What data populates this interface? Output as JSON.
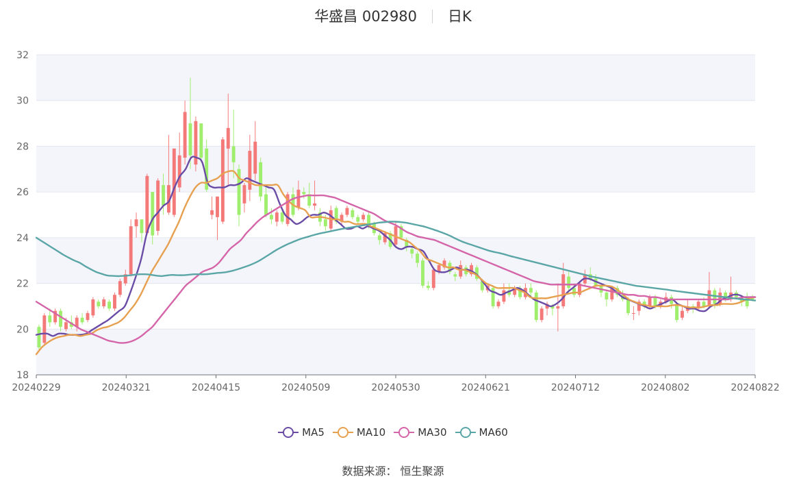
{
  "header": {
    "stock": "华盛昌 002980",
    "period": "日K"
  },
  "source_label": "数据来源：  恒生聚源",
  "colors": {
    "up": "#f47a7a",
    "down": "#a0ee6e",
    "MA5": "#6a4ca6",
    "MA10": "#e7a04f",
    "MA30": "#d565a9",
    "MA60": "#5aa6a6"
  },
  "chart_data": {
    "type": "candlestick",
    "ylim": [
      18,
      32
    ],
    "yticks": [
      18,
      20,
      22,
      24,
      26,
      28,
      30,
      32
    ],
    "xtick_labels": [
      "20240229",
      "20240321",
      "20240415",
      "20240509",
      "20240530",
      "20240621",
      "20240712",
      "20240802",
      "20240822"
    ],
    "grid": true,
    "legend_position": "bottom",
    "candles": [
      [
        20.1,
        19.2,
        20.2,
        19.1
      ],
      [
        19.4,
        20.6,
        20.7,
        19.3
      ],
      [
        20.6,
        20.3,
        20.9,
        20.1
      ],
      [
        20.3,
        20.8,
        20.9,
        20.2
      ],
      [
        20.8,
        20.1,
        20.9,
        19.9
      ],
      [
        20.0,
        20.3,
        20.5,
        19.9
      ],
      [
        20.3,
        20.1,
        20.6,
        20.0
      ],
      [
        20.1,
        20.5,
        20.6,
        19.9
      ],
      [
        20.5,
        20.3,
        20.7,
        20.2
      ],
      [
        20.4,
        20.7,
        20.8,
        20.3
      ],
      [
        20.6,
        21.3,
        21.4,
        20.5
      ],
      [
        21.2,
        21.0,
        21.3,
        20.9
      ],
      [
        21.0,
        21.3,
        21.4,
        20.9
      ],
      [
        21.2,
        20.9,
        21.3,
        20.8
      ],
      [
        20.9,
        21.5,
        21.6,
        20.8
      ],
      [
        21.5,
        22.1,
        22.2,
        21.4
      ],
      [
        22.0,
        22.4,
        22.6,
        21.9
      ],
      [
        22.4,
        24.5,
        24.8,
        22.3
      ],
      [
        24.5,
        24.8,
        25.1,
        24.0
      ],
      [
        24.8,
        24.2,
        24.8,
        23.8
      ],
      [
        24.2,
        26.7,
        26.8,
        24.1
      ],
      [
        26.0,
        24.1,
        26.0,
        23.7
      ],
      [
        24.3,
        26.5,
        26.6,
        24.1
      ],
      [
        26.3,
        25.4,
        26.8,
        25.0
      ],
      [
        25.1,
        26.3,
        28.5,
        25.0
      ],
      [
        25.0,
        27.9,
        27.9,
        24.9
      ],
      [
        26.2,
        27.6,
        28.6,
        26.0
      ],
      [
        27.5,
        29.5,
        30.0,
        27.2
      ],
      [
        29.0,
        27.6,
        31.0,
        27.0
      ],
      [
        27.2,
        29.1,
        29.3,
        26.9
      ],
      [
        29.0,
        27.5,
        29.0,
        27.3
      ],
      [
        27.9,
        26.1,
        28.3,
        26.0
      ],
      [
        25.0,
        25.2,
        25.8,
        24.8
      ],
      [
        24.9,
        25.8,
        25.8,
        23.9
      ],
      [
        24.7,
        28.3,
        28.4,
        24.6
      ],
      [
        27.9,
        28.8,
        30.3,
        26.3
      ],
      [
        28.0,
        27.3,
        29.6,
        26.6
      ],
      [
        27.0,
        25.0,
        27.2,
        24.5
      ],
      [
        25.5,
        26.3,
        26.4,
        25.1
      ],
      [
        26.1,
        27.8,
        28.5,
        25.6
      ],
      [
        26.8,
        28.2,
        29.1,
        26.5
      ],
      [
        27.3,
        25.8,
        27.5,
        25.6
      ],
      [
        25.9,
        25.0,
        26.2,
        24.9
      ],
      [
        25.0,
        24.8,
        25.3,
        24.6
      ],
      [
        24.7,
        25.1,
        25.2,
        24.5
      ],
      [
        25.1,
        24.7,
        25.3,
        24.6
      ],
      [
        24.6,
        25.9,
        26.0,
        24.5
      ],
      [
        25.9,
        25.0,
        26.2,
        24.9
      ],
      [
        25.3,
        26.1,
        26.5,
        25.2
      ],
      [
        26.0,
        25.9,
        26.2,
        25.7
      ],
      [
        25.9,
        25.4,
        26.4,
        25.3
      ],
      [
        25.4,
        25.5,
        26.5,
        25.2
      ],
      [
        25.1,
        24.7,
        25.3,
        24.5
      ],
      [
        24.8,
        24.5,
        25.0,
        24.3
      ],
      [
        24.4,
        25.2,
        25.4,
        24.3
      ],
      [
        25.3,
        24.7,
        25.4,
        24.6
      ],
      [
        24.7,
        25.0,
        25.1,
        24.6
      ],
      [
        25.0,
        25.3,
        25.4,
        24.9
      ],
      [
        25.2,
        24.9,
        25.3,
        24.8
      ],
      [
        24.9,
        24.7,
        25.0,
        24.6
      ],
      [
        24.8,
        25.0,
        25.1,
        24.7
      ],
      [
        25.0,
        24.6,
        25.1,
        24.4
      ],
      [
        24.6,
        24.2,
        24.7,
        24.1
      ],
      [
        24.1,
        23.9,
        24.2,
        23.7
      ],
      [
        23.8,
        24.2,
        24.3,
        23.7
      ],
      [
        24.2,
        23.6,
        24.3,
        23.5
      ],
      [
        23.7,
        24.5,
        24.7,
        23.6
      ],
      [
        24.5,
        24.0,
        24.6,
        23.9
      ],
      [
        23.9,
        23.6,
        24.0,
        23.4
      ],
      [
        23.5,
        23.3,
        23.6,
        23.1
      ],
      [
        23.3,
        22.9,
        23.4,
        22.7
      ],
      [
        23.0,
        21.9,
        23.1,
        21.8
      ],
      [
        21.9,
        21.8,
        22.1,
        21.7
      ],
      [
        21.8,
        22.6,
        22.7,
        21.7
      ],
      [
        22.5,
        22.8,
        22.9,
        22.4
      ],
      [
        22.7,
        23.0,
        23.1,
        22.6
      ],
      [
        22.9,
        22.5,
        23.0,
        22.4
      ],
      [
        22.4,
        22.3,
        22.5,
        22.1
      ],
      [
        22.3,
        22.8,
        23.0,
        22.2
      ],
      [
        22.7,
        22.4,
        22.8,
        22.3
      ],
      [
        22.4,
        22.8,
        22.9,
        22.3
      ],
      [
        22.7,
        22.2,
        22.8,
        22.1
      ],
      [
        22.1,
        21.7,
        22.2,
        21.6
      ],
      [
        21.7,
        21.9,
        22.0,
        21.6
      ],
      [
        21.8,
        21.0,
        21.9,
        20.9
      ],
      [
        21.0,
        21.2,
        21.3,
        20.9
      ],
      [
        21.2,
        21.7,
        22.0,
        21.1
      ],
      [
        21.7,
        21.5,
        22.0,
        21.4
      ],
      [
        21.5,
        21.8,
        21.9,
        21.4
      ],
      [
        21.8,
        21.4,
        21.9,
        21.3
      ],
      [
        21.4,
        21.8,
        22.0,
        21.3
      ],
      [
        21.8,
        21.6,
        22.0,
        21.4
      ],
      [
        21.6,
        20.4,
        21.7,
        20.3
      ],
      [
        20.4,
        20.9,
        21.0,
        20.3
      ],
      [
        20.9,
        21.1,
        21.2,
        20.6
      ],
      [
        21.0,
        20.9,
        21.1,
        20.6
      ],
      [
        20.9,
        21.0,
        22.0,
        19.9
      ],
      [
        21.0,
        22.4,
        22.9,
        20.9
      ],
      [
        22.3,
        21.8,
        22.5,
        21.6
      ],
      [
        21.8,
        21.5,
        22.0,
        21.4
      ],
      [
        21.5,
        22.0,
        22.1,
        21.4
      ],
      [
        22.0,
        22.4,
        22.6,
        21.9
      ],
      [
        22.4,
        22.2,
        22.7,
        22.1
      ],
      [
        22.2,
        21.9,
        22.4,
        21.8
      ],
      [
        21.9,
        21.6,
        22.0,
        21.4
      ],
      [
        21.6,
        21.3,
        21.7,
        21.0
      ],
      [
        21.3,
        21.8,
        21.9,
        21.2
      ],
      [
        21.8,
        21.5,
        21.9,
        21.4
      ],
      [
        21.5,
        21.3,
        21.7,
        21.2
      ],
      [
        21.3,
        20.7,
        21.4,
        20.6
      ],
      [
        20.7,
        20.7,
        21.0,
        20.4
      ],
      [
        20.8,
        21.2,
        21.3,
        20.6
      ],
      [
        21.2,
        21.0,
        21.3,
        20.9
      ],
      [
        21.0,
        21.4,
        21.5,
        20.9
      ],
      [
        21.4,
        21.0,
        21.5,
        20.9
      ],
      [
        21.0,
        21.2,
        21.3,
        20.9
      ],
      [
        21.2,
        21.4,
        21.6,
        21.1
      ],
      [
        21.4,
        21.1,
        21.5,
        20.9
      ],
      [
        21.1,
        20.4,
        21.2,
        20.3
      ],
      [
        20.5,
        20.8,
        21.0,
        20.4
      ],
      [
        20.8,
        21.0,
        21.3,
        20.7
      ],
      [
        21.0,
        20.9,
        21.1,
        20.7
      ],
      [
        20.9,
        21.2,
        21.3,
        20.8
      ],
      [
        21.2,
        21.0,
        21.4,
        20.9
      ],
      [
        21.0,
        21.7,
        22.5,
        20.9
      ],
      [
        21.7,
        21.1,
        21.8,
        20.9
      ],
      [
        21.1,
        21.6,
        21.8,
        21.0
      ],
      [
        21.6,
        21.3,
        21.7,
        21.2
      ],
      [
        21.3,
        21.6,
        22.3,
        21.2
      ],
      [
        21.6,
        21.4,
        21.7,
        21.3
      ],
      [
        21.4,
        21.2,
        21.5,
        21.0
      ],
      [
        21.4,
        21.0,
        21.6,
        20.9
      ],
      [
        21.4,
        21.3,
        21.5,
        21.2
      ]
    ],
    "series": [
      {
        "name": "MA5",
        "values": [
          19.75,
          19.8,
          19.8,
          19.7,
          19.8,
          19.8,
          19.75,
          19.75,
          19.75,
          19.8,
          19.95,
          20.1,
          20.25,
          20.4,
          20.6,
          20.8,
          21.0,
          21.6,
          22.3,
          23.1,
          24.2,
          24.8,
          25.1,
          25.4,
          25.6,
          26.2,
          26.7,
          27.0,
          27.5,
          27.5,
          27.3,
          26.4,
          26.2,
          26.2,
          26.2,
          26.3,
          26.3,
          26.4,
          26.6,
          26.5,
          26.4,
          26.3,
          26.2,
          26.1,
          25.5,
          25.0,
          24.8,
          24.6,
          24.7,
          24.9,
          25.0,
          25.0,
          25.1,
          25.0,
          24.8,
          24.6,
          24.4,
          24.4,
          24.5,
          24.4,
          24.5,
          24.4,
          24.3,
          24.1,
          23.9,
          23.6,
          23.5,
          23.6,
          23.6,
          23.5,
          23.4,
          23.0,
          22.6,
          22.5,
          22.5,
          22.6,
          22.7,
          22.6,
          22.6,
          22.5,
          22.3,
          22.0,
          21.7,
          21.6,
          21.5,
          21.6,
          21.7,
          21.8,
          21.7,
          21.5,
          21.3,
          21.2,
          21.1,
          21.0,
          21.1,
          21.3,
          21.6,
          21.8,
          22.0,
          22.2,
          22.2,
          22.1,
          22.0,
          21.9,
          21.8,
          21.6,
          21.4,
          21.3,
          21.2,
          21.1,
          21.0,
          20.9,
          21.0,
          21.1,
          21.2,
          21.3,
          21.1,
          21.0,
          20.9,
          20.9,
          20.8,
          20.8,
          21.0,
          21.1,
          21.3,
          21.4,
          21.5,
          21.5,
          21.4,
          21.4,
          21.4
        ]
      },
      {
        "name": "MA10",
        "values": [
          18.9,
          19.2,
          19.4,
          19.55,
          19.65,
          19.7,
          19.75,
          19.75,
          19.7,
          19.75,
          19.8,
          19.95,
          20.05,
          20.1,
          20.2,
          20.3,
          20.5,
          20.8,
          21.1,
          21.5,
          22.0,
          22.5,
          22.9,
          23.3,
          23.7,
          24.2,
          24.7,
          25.3,
          25.8,
          26.2,
          26.4,
          26.4,
          26.5,
          26.6,
          26.8,
          26.9,
          26.9,
          26.6,
          26.5,
          26.4,
          26.3,
          26.3,
          26.3,
          26.3,
          26.3,
          25.9,
          25.6,
          25.4,
          25.3,
          25.2,
          24.9,
          24.9,
          24.9,
          24.85,
          24.8,
          24.8,
          24.7,
          24.7,
          24.6,
          24.6,
          24.6,
          24.5,
          24.4,
          24.3,
          24.2,
          24.1,
          24.0,
          23.9,
          23.8,
          23.6,
          23.4,
          23.1,
          23.0,
          22.9,
          22.8,
          22.7,
          22.7,
          22.6,
          22.6,
          22.5,
          22.4,
          22.2,
          22.0,
          21.9,
          21.8,
          21.8,
          21.8,
          21.8,
          21.7,
          21.6,
          21.4,
          21.35,
          21.35,
          21.35,
          21.4,
          21.45,
          21.5,
          21.55,
          21.6,
          21.6,
          21.7,
          21.8,
          21.9,
          21.9,
          21.9,
          21.85,
          21.7,
          21.5,
          21.3,
          21.2,
          21.1,
          21.05,
          21.0,
          21.0,
          21.0,
          21.0,
          21.05,
          21.05,
          21.0,
          20.95,
          20.95,
          20.95,
          21.0,
          21.05,
          21.05,
          21.1,
          21.1,
          21.1,
          21.15,
          21.25,
          21.35,
          21.4
        ]
      },
      {
        "name": "MA30",
        "values": [
          21.2,
          21.05,
          20.9,
          20.75,
          20.6,
          20.45,
          20.3,
          20.15,
          20.0,
          19.9,
          19.8,
          19.7,
          19.6,
          19.5,
          19.45,
          19.4,
          19.4,
          19.45,
          19.55,
          19.7,
          19.9,
          20.1,
          20.4,
          20.7,
          21.0,
          21.3,
          21.6,
          21.9,
          22.1,
          22.3,
          22.5,
          22.6,
          22.7,
          22.9,
          23.2,
          23.5,
          23.7,
          23.9,
          24.2,
          24.45,
          24.7,
          24.9,
          25.05,
          25.2,
          25.35,
          25.5,
          25.65,
          25.75,
          25.8,
          25.85,
          25.85,
          25.85,
          25.85,
          25.8,
          25.75,
          25.65,
          25.55,
          25.45,
          25.35,
          25.25,
          25.15,
          25.05,
          24.9,
          24.75,
          24.65,
          24.55,
          24.4,
          24.25,
          24.15,
          24.05,
          24.0,
          23.95,
          23.9,
          23.8,
          23.7,
          23.6,
          23.5,
          23.4,
          23.3,
          23.2,
          23.1,
          23.0,
          22.9,
          22.8,
          22.7,
          22.6,
          22.5,
          22.4,
          22.3,
          22.2,
          22.1,
          22.05,
          22.0,
          21.95,
          21.95,
          21.95,
          21.95,
          21.95,
          21.95,
          21.9,
          21.85,
          21.8,
          21.75,
          21.7,
          21.65,
          21.6,
          21.55,
          21.5,
          21.5,
          21.45,
          21.45,
          21.4,
          21.4,
          21.35,
          21.3,
          21.3,
          21.3,
          21.3,
          21.3,
          21.3,
          21.3,
          21.3,
          21.3,
          21.3,
          21.3,
          21.3,
          21.35,
          21.35,
          21.4,
          21.4,
          21.4
        ]
      },
      {
        "name": "MA60",
        "values": [
          24.0,
          23.85,
          23.7,
          23.55,
          23.4,
          23.25,
          23.12,
          23.0,
          22.9,
          22.75,
          22.62,
          22.5,
          22.42,
          22.35,
          22.33,
          22.32,
          22.33,
          22.35,
          22.38,
          22.4,
          22.4,
          22.38,
          22.34,
          22.32,
          22.35,
          22.37,
          22.36,
          22.36,
          22.38,
          22.4,
          22.4,
          22.4,
          22.42,
          22.45,
          22.47,
          22.5,
          22.55,
          22.62,
          22.7,
          22.78,
          22.88,
          23.0,
          23.15,
          23.3,
          23.45,
          23.58,
          23.7,
          23.8,
          23.9,
          23.98,
          24.05,
          24.12,
          24.18,
          24.23,
          24.28,
          24.33,
          24.38,
          24.42,
          24.46,
          24.5,
          24.54,
          24.58,
          24.62,
          24.66,
          24.68,
          24.7,
          24.7,
          24.68,
          24.65,
          24.6,
          24.55,
          24.5,
          24.43,
          24.35,
          24.27,
          24.18,
          24.08,
          23.96,
          23.85,
          23.76,
          23.68,
          23.6,
          23.52,
          23.44,
          23.38,
          23.33,
          23.27,
          23.2,
          23.14,
          23.08,
          23.02,
          22.96,
          22.9,
          22.84,
          22.78,
          22.72,
          22.66,
          22.6,
          22.54,
          22.48,
          22.42,
          22.36,
          22.3,
          22.25,
          22.2,
          22.15,
          22.1,
          22.05,
          22.0,
          21.95,
          21.9,
          21.87,
          21.84,
          21.81,
          21.78,
          21.75,
          21.72,
          21.68,
          21.65,
          21.62,
          21.59,
          21.56,
          21.53,
          21.5,
          21.47,
          21.44,
          21.41,
          21.38,
          21.35,
          21.32,
          21.3,
          21.28,
          21.25
        ]
      }
    ]
  }
}
